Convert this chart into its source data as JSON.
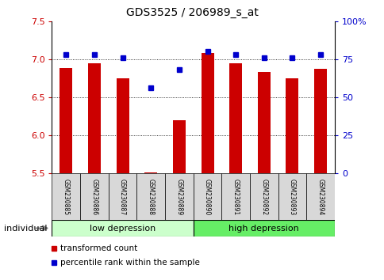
{
  "title": "GDS3525 / 206989_s_at",
  "samples": [
    "GSM230885",
    "GSM230886",
    "GSM230887",
    "GSM230888",
    "GSM230889",
    "GSM230890",
    "GSM230891",
    "GSM230892",
    "GSM230893",
    "GSM230894"
  ],
  "transformed_counts": [
    6.88,
    6.95,
    6.75,
    5.52,
    6.2,
    7.08,
    6.95,
    6.83,
    6.75,
    6.87
  ],
  "percentile_ranks": [
    78,
    78,
    76,
    56,
    68,
    80,
    78,
    76,
    76,
    78
  ],
  "bar_color": "#cc0000",
  "dot_color": "#0000cc",
  "ylim_left": [
    5.5,
    7.5
  ],
  "ylim_right": [
    0,
    100
  ],
  "yticks_left": [
    5.5,
    6.0,
    6.5,
    7.0,
    7.5
  ],
  "yticks_right": [
    0,
    25,
    50,
    75,
    100
  ],
  "ytick_labels_right": [
    "0",
    "25",
    "50",
    "75",
    "100%"
  ],
  "group1_label": "low depression",
  "group2_label": "high depression",
  "group1_indices": [
    0,
    1,
    2,
    3,
    4
  ],
  "group2_indices": [
    5,
    6,
    7,
    8,
    9
  ],
  "group1_color": "#ccffcc",
  "group2_color": "#66ee66",
  "legend_bar_label": "transformed count",
  "legend_dot_label": "percentile rank within the sample",
  "individual_label": "individual",
  "tick_label_color_left": "#cc0000",
  "tick_label_color_right": "#0000cc",
  "grid_lines": [
    6.0,
    6.5,
    7.0
  ],
  "cell_color": "#d8d8d8"
}
